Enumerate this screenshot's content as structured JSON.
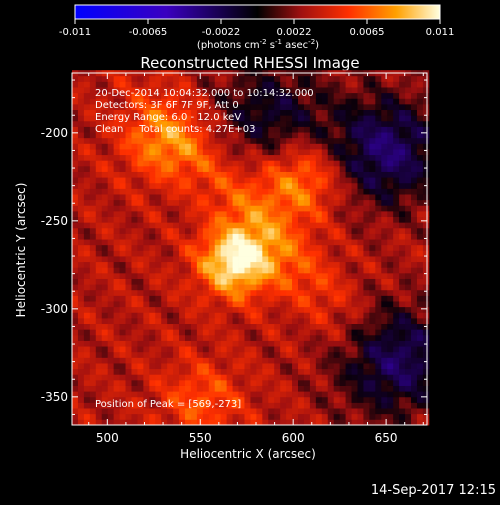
{
  "colorbar": {
    "ticks": [
      "-0.011",
      "-0.0065",
      "-0.0022",
      "0.0022",
      "0.0065",
      "0.011"
    ],
    "unit_label": "(photons cm",
    "unit_parts": [
      "(photons cm",
      "-2",
      " s",
      "-1",
      " asec",
      "-2",
      ")"
    ]
  },
  "chart_data": {
    "type": "heatmap",
    "title": "Reconstructed RHESSI Image",
    "xlabel": "Heliocentric X (arcsec)",
    "ylabel": "Heliocentric Y (arcsec)",
    "xlim": [
      481,
      672
    ],
    "ylim": [
      -366,
      -166
    ],
    "x_ticks": [
      500,
      550,
      600,
      650
    ],
    "y_ticks": [
      -200,
      -250,
      -300,
      -350
    ],
    "vrange": [
      -0.011,
      0.011
    ],
    "info": [
      "20-Dec-2014 10:04:32.000 to 10:14:32.000",
      "Detectors: 3F 6F 7F 9F, Att 0",
      "Energy Range: 6.0 - 12.0 keV",
      "Clean     Total counts: 4.27E+03"
    ],
    "peak_label": "Position of Peak = [569,-273]",
    "peak": [
      569,
      -273
    ],
    "sources": [
      {
        "x": 569,
        "y": -273,
        "value": 0.011
      },
      {
        "x": 604,
        "y": -226,
        "value": 0.008
      },
      {
        "x": 530,
        "y": -205,
        "value": 0.007
      },
      {
        "x": 551,
        "y": -352,
        "value": 0.006
      }
    ],
    "dark_regions": [
      {
        "x": 650,
        "y": -210,
        "value": -0.003
      },
      {
        "x": 655,
        "y": -330,
        "value": -0.003
      },
      {
        "x": 588,
        "y": -190,
        "value": -0.001
      }
    ]
  },
  "footer": {
    "timestamp": "14-Sep-2017 12:15"
  },
  "colors": {
    "background": "#000000",
    "text": "#ffffff"
  }
}
